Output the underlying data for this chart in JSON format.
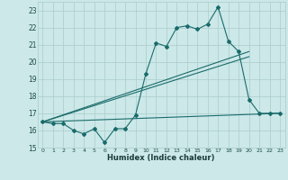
{
  "xlabel": "Humidex (Indice chaleur)",
  "x_ticks": [
    0,
    1,
    2,
    3,
    4,
    5,
    6,
    7,
    8,
    9,
    10,
    11,
    12,
    13,
    14,
    15,
    16,
    17,
    18,
    19,
    20,
    21,
    22,
    23
  ],
  "ylim": [
    15,
    23.5
  ],
  "xlim": [
    -0.5,
    23.5
  ],
  "yticks": [
    15,
    16,
    17,
    18,
    19,
    20,
    21,
    22,
    23
  ],
  "bg_color": "#cce8e8",
  "grid_color": "#aacccc",
  "line_color": "#1a6b6b",
  "zigzag_x": [
    0,
    1,
    2,
    3,
    4,
    5,
    6,
    7,
    8,
    9,
    10,
    11,
    12,
    13,
    14,
    15,
    16,
    17,
    18,
    19,
    20,
    21,
    22,
    23
  ],
  "zigzag_y": [
    16.5,
    16.4,
    16.4,
    16.0,
    15.8,
    16.1,
    15.3,
    16.1,
    16.1,
    16.9,
    19.3,
    21.1,
    20.9,
    22.0,
    22.1,
    21.9,
    22.2,
    23.2,
    21.2,
    20.6,
    17.8,
    17.0,
    17.0,
    17.0
  ],
  "line1_x": [
    0,
    20
  ],
  "line1_y": [
    16.5,
    20.6
  ],
  "line2_x": [
    0,
    20
  ],
  "line2_y": [
    16.5,
    20.3
  ],
  "line3_x": [
    0,
    23
  ],
  "line3_y": [
    16.5,
    17.0
  ]
}
